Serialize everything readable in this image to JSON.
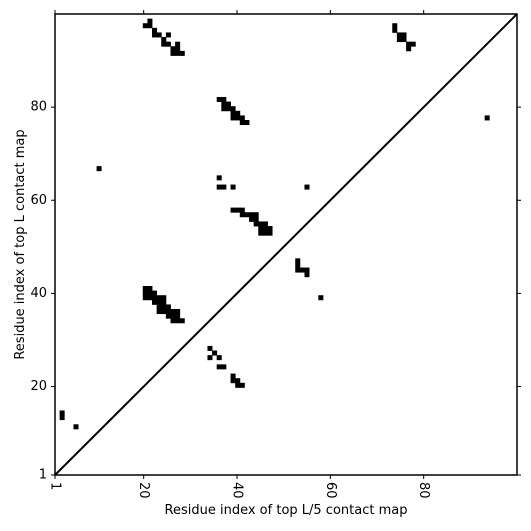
{
  "chart_data": {
    "type": "heatmap",
    "subtype": "contact-map",
    "xlabel": "Residue index of top L/5 contact map",
    "ylabel": "Residue index of top L contact map",
    "xlim": [
      1,
      100
    ],
    "ylim": [
      1,
      100
    ],
    "xticks": [
      1,
      20,
      40,
      60,
      80
    ],
    "yticks": [
      1,
      20,
      40,
      60,
      80
    ],
    "xtick_labels": [
      "1",
      "20",
      "40",
      "60",
      "80"
    ],
    "ytick_labels": [
      "1",
      "20",
      "40",
      "60",
      "80"
    ],
    "xtick_rotation_deg": -90,
    "diagonal": true,
    "grid": false,
    "cell_color": "#000000",
    "contacts_upper_top_L5": [
      [
        20,
        98
      ],
      [
        21,
        98
      ],
      [
        21,
        99
      ],
      [
        22,
        97
      ],
      [
        22,
        96
      ],
      [
        23,
        96
      ],
      [
        24,
        95
      ],
      [
        24,
        94
      ],
      [
        25,
        96
      ],
      [
        25,
        94
      ],
      [
        26,
        93
      ],
      [
        26,
        92
      ],
      [
        27,
        94
      ],
      [
        27,
        93
      ],
      [
        27,
        92
      ],
      [
        28,
        92
      ],
      [
        74,
        98
      ],
      [
        74,
        97
      ],
      [
        75,
        96
      ],
      [
        75,
        95
      ],
      [
        76,
        96
      ],
      [
        76,
        95
      ],
      [
        77,
        94
      ],
      [
        77,
        93
      ],
      [
        78,
        94
      ],
      [
        36,
        82
      ],
      [
        37,
        82
      ],
      [
        37,
        81
      ],
      [
        37,
        80
      ],
      [
        38,
        81
      ],
      [
        38,
        80
      ],
      [
        39,
        80
      ],
      [
        39,
        79
      ],
      [
        39,
        78
      ],
      [
        40,
        79
      ],
      [
        40,
        78
      ],
      [
        41,
        78
      ],
      [
        41,
        77
      ],
      [
        42,
        77
      ],
      [
        10,
        67
      ],
      [
        36,
        65
      ],
      [
        36,
        63
      ],
      [
        37,
        63
      ],
      [
        39,
        63
      ],
      [
        55,
        63
      ],
      [
        94,
        78
      ],
      [
        39,
        58
      ],
      [
        40,
        58
      ],
      [
        41,
        58
      ],
      [
        41,
        57
      ],
      [
        42,
        57
      ],
      [
        43,
        57
      ],
      [
        43,
        56
      ],
      [
        44,
        57
      ],
      [
        44,
        56
      ],
      [
        44,
        55
      ],
      [
        45,
        55
      ],
      [
        45,
        54
      ],
      [
        45,
        53
      ],
      [
        46,
        55
      ],
      [
        46,
        54
      ],
      [
        46,
        53
      ],
      [
        47,
        54
      ],
      [
        47,
        53
      ]
    ],
    "contacts_lower_top_L": [
      [
        20,
        41
      ],
      [
        20,
        40
      ],
      [
        20,
        39
      ],
      [
        21,
        41
      ],
      [
        21,
        40
      ],
      [
        21,
        39
      ],
      [
        22,
        40
      ],
      [
        22,
        39
      ],
      [
        22,
        38
      ],
      [
        23,
        39
      ],
      [
        23,
        38
      ],
      [
        23,
        37
      ],
      [
        23,
        36
      ],
      [
        24,
        39
      ],
      [
        24,
        38
      ],
      [
        24,
        37
      ],
      [
        24,
        36
      ],
      [
        25,
        37
      ],
      [
        25,
        36
      ],
      [
        25,
        35
      ],
      [
        26,
        36
      ],
      [
        26,
        35
      ],
      [
        26,
        34
      ],
      [
        27,
        36
      ],
      [
        27,
        35
      ],
      [
        27,
        34
      ],
      [
        28,
        34
      ],
      [
        53,
        47
      ],
      [
        53,
        46
      ],
      [
        53,
        45
      ],
      [
        54,
        45
      ],
      [
        55,
        45
      ],
      [
        55,
        44
      ],
      [
        58,
        39
      ],
      [
        34,
        28
      ],
      [
        34,
        26
      ],
      [
        35,
        27
      ],
      [
        36,
        26
      ],
      [
        36,
        24
      ],
      [
        37,
        24
      ],
      [
        39,
        22
      ],
      [
        39,
        21
      ],
      [
        40,
        21
      ],
      [
        40,
        20
      ],
      [
        41,
        20
      ],
      [
        2,
        14
      ],
      [
        2,
        13
      ],
      [
        5,
        11
      ]
    ]
  }
}
